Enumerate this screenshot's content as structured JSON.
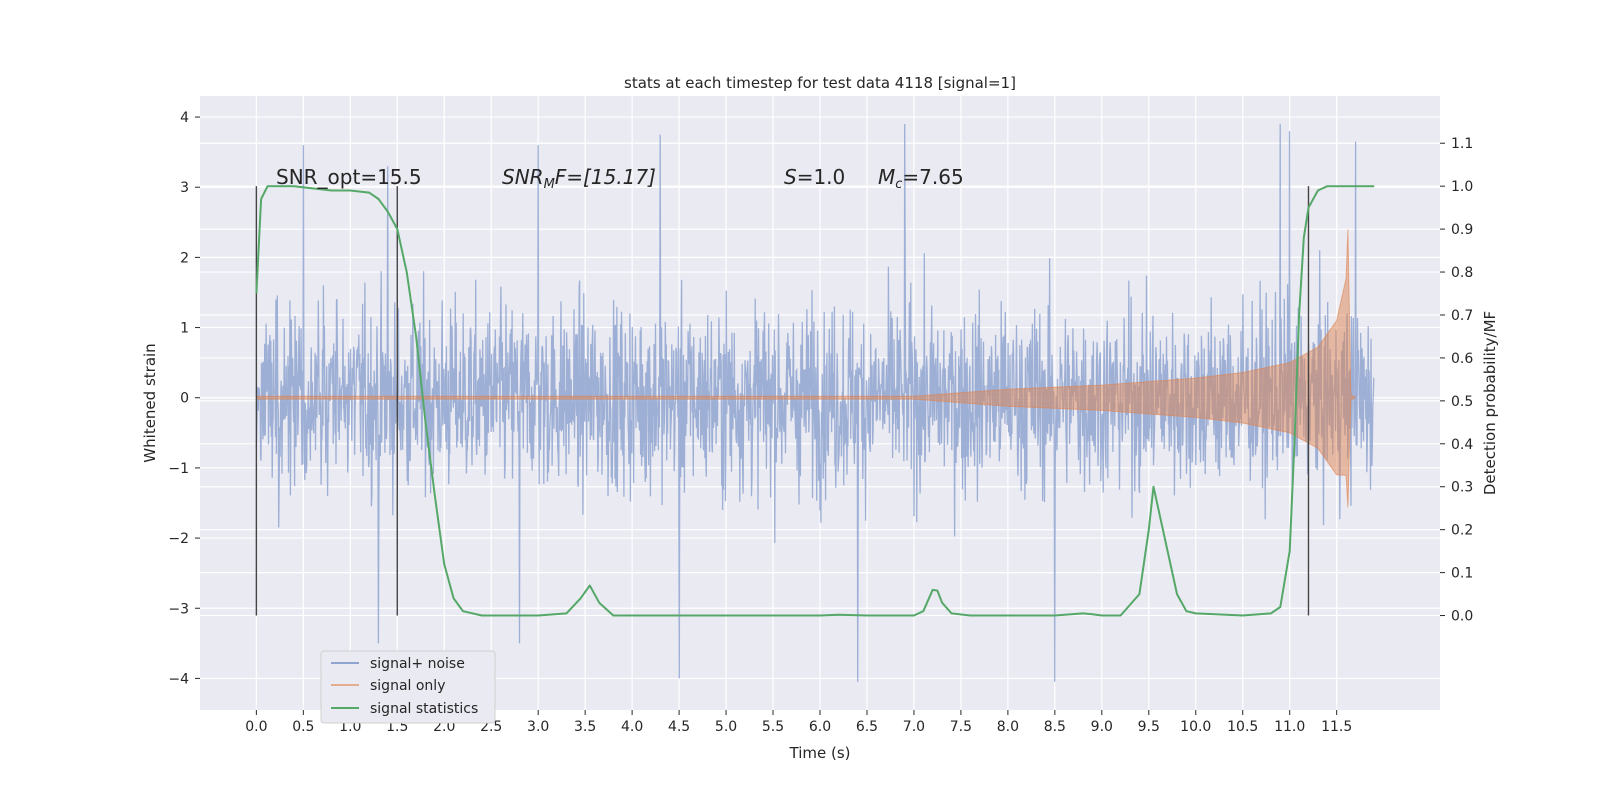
{
  "chart_data": {
    "type": "line",
    "title": "stats at each timestep for test data 4118 [signal=1]",
    "xlabel": "Time (s)",
    "ylabel": "Whitened strain",
    "ylabel_right": "Detection probability/MF",
    "xlim": [
      -0.6,
      12.6
    ],
    "ylim": [
      -4.45,
      4.3
    ],
    "ylim_right": [
      -0.22,
      1.21
    ],
    "x_ticks": [
      "0.0",
      "0.5",
      "1.0",
      "1.5",
      "2.0",
      "2.5",
      "3.0",
      "3.5",
      "4.0",
      "4.5",
      "5.0",
      "5.5",
      "6.0",
      "6.5",
      "7.0",
      "7.5",
      "8.0",
      "8.5",
      "9.0",
      "9.5",
      "10.0",
      "10.5",
      "11.0",
      "11.5"
    ],
    "y_ticks": [
      "4",
      "3",
      "2",
      "1",
      "0",
      "−1",
      "−2",
      "−3",
      "−4"
    ],
    "y_ticks_right": [
      "1.1",
      "1.0",
      "0.9",
      "0.8",
      "0.7",
      "0.6",
      "0.5",
      "0.4",
      "0.3",
      "0.2",
      "0.1",
      "0.0"
    ],
    "grid": true,
    "legend_position": "lower-left",
    "annotations": {
      "snr_opt": "SNR_opt=15.5",
      "snr_mf_base": "SNR",
      "snr_mf_sub": "M",
      "snr_mf_rest": "F=[15.17]",
      "s_var": "S",
      "s_rest": "=1.0",
      "mc_base": "M",
      "mc_sub": "c",
      "mc_rest": "=7.65"
    },
    "vertical_lines_x": [
      0.0,
      1.5,
      11.2
    ],
    "series": [
      {
        "name": "signal+ noise",
        "color": "#8fa5d0",
        "x_range": [
          0.0,
          11.9
        ],
        "envelope_typical": 2.2,
        "peaks": [
          [
            0.5,
            3.6
          ],
          [
            1.4,
            3.3
          ],
          [
            3.0,
            3.6
          ],
          [
            4.3,
            3.75
          ],
          [
            4.5,
            -4.0
          ],
          [
            6.4,
            -4.05
          ],
          [
            6.9,
            3.9
          ],
          [
            8.5,
            -4.05
          ],
          [
            10.9,
            3.9
          ],
          [
            11.0,
            3.8
          ],
          [
            11.7,
            3.65
          ],
          [
            2.8,
            -3.5
          ],
          [
            1.3,
            -3.5
          ]
        ]
      },
      {
        "name": "signal only",
        "color": "#dd8452",
        "x_range": [
          0.0,
          11.7
        ],
        "amplitude_points": [
          [
            0.0,
            0.02
          ],
          [
            7.0,
            0.02
          ],
          [
            8.0,
            0.12
          ],
          [
            9.0,
            0.18
          ],
          [
            10.0,
            0.28
          ],
          [
            10.5,
            0.36
          ],
          [
            11.0,
            0.5
          ],
          [
            11.3,
            0.72
          ],
          [
            11.5,
            1.1
          ],
          [
            11.6,
            1.7
          ],
          [
            11.62,
            2.4
          ],
          [
            11.65,
            0.05
          ],
          [
            11.7,
            0.0
          ]
        ]
      },
      {
        "name": "signal statistics",
        "color": "#55a868",
        "axis": "right",
        "x": [
          0.0,
          0.05,
          0.12,
          0.2,
          0.4,
          0.8,
          1.0,
          1.2,
          1.3,
          1.4,
          1.5,
          1.6,
          1.7,
          1.8,
          1.9,
          2.0,
          2.1,
          2.2,
          2.4,
          3.0,
          3.3,
          3.45,
          3.55,
          3.65,
          3.8,
          4.0,
          5.0,
          6.0,
          6.2,
          6.5,
          7.0,
          7.1,
          7.2,
          7.25,
          7.3,
          7.4,
          7.6,
          8.0,
          8.5,
          8.8,
          8.9,
          9.0,
          9.2,
          9.4,
          9.5,
          9.55,
          9.6,
          9.7,
          9.8,
          9.9,
          10.0,
          10.5,
          10.8,
          10.9,
          11.0,
          11.05,
          11.1,
          11.15,
          11.2,
          11.3,
          11.4,
          11.5,
          11.7,
          11.9
        ],
        "y": [
          0.75,
          0.97,
          1.0,
          1.0,
          1.0,
          0.99,
          0.99,
          0.985,
          0.97,
          0.94,
          0.9,
          0.8,
          0.65,
          0.45,
          0.28,
          0.12,
          0.04,
          0.01,
          0.0,
          0.0,
          0.005,
          0.04,
          0.07,
          0.03,
          0.0,
          0.0,
          0.0,
          0.0,
          0.002,
          0.0,
          0.0,
          0.01,
          0.06,
          0.058,
          0.03,
          0.005,
          0.0,
          0.0,
          0.0,
          0.005,
          0.003,
          0.0,
          0.0,
          0.05,
          0.2,
          0.3,
          0.25,
          0.15,
          0.05,
          0.01,
          0.005,
          0.0,
          0.005,
          0.02,
          0.15,
          0.4,
          0.7,
          0.88,
          0.95,
          0.99,
          1.0,
          1.0,
          1.0,
          1.0
        ]
      }
    ]
  }
}
